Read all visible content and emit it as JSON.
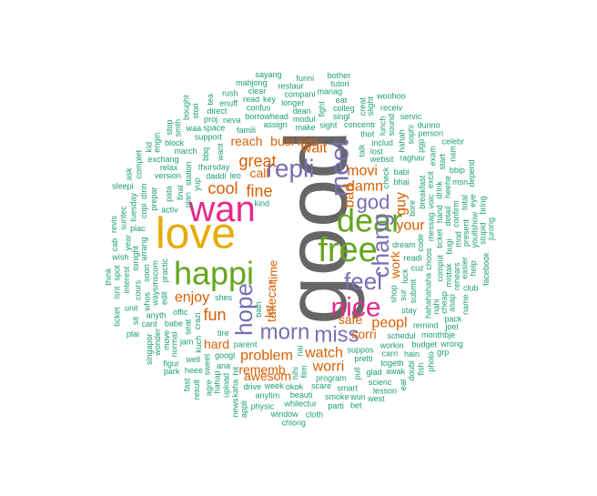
{
  "title": "",
  "colors": {
    "xs": "#1b9e77",
    "s": "#d95f02",
    "m": "#7570b3",
    "l": "#e7298a",
    "xl": "#66a61e",
    "xxl": "#e6ab02",
    "top": "#666666"
  },
  "words": [
    {
      "text": "good",
      "size": "top"
    },
    {
      "text": "love",
      "size": "xxl"
    },
    {
      "text": "dear",
      "size": "xl"
    },
    {
      "text": "free",
      "size": "xl"
    },
    {
      "text": "happi",
      "size": "xl"
    },
    {
      "text": "wan",
      "size": "l"
    },
    {
      "text": "nice",
      "size": "l"
    },
    {
      "text": "repli",
      "size": "m"
    },
    {
      "text": "feel",
      "size": "m"
    },
    {
      "text": "meet",
      "size": "m"
    },
    {
      "text": "chang",
      "size": "m"
    },
    {
      "text": "hope",
      "size": "m"
    },
    {
      "text": "morn",
      "size": "m"
    },
    {
      "text": "miss",
      "size": "m"
    },
    {
      "text": "god",
      "size": "m"
    },
    {
      "text": "great",
      "size": "s"
    },
    {
      "text": "cool",
      "size": "s"
    },
    {
      "text": "fine",
      "size": "s"
    },
    {
      "text": "fun",
      "size": "s"
    },
    {
      "text": "enjoy",
      "size": "s"
    },
    {
      "text": "problem",
      "size": "s"
    },
    {
      "text": "watch",
      "size": "s"
    },
    {
      "text": "worri",
      "size": "s"
    },
    {
      "text": "peopl",
      "size": "s"
    },
    {
      "text": "movi",
      "size": "s"
    },
    {
      "text": "damn",
      "size": "s"
    },
    {
      "text": "bad",
      "size": "s"
    },
    {
      "text": "guy",
      "size": "s"
    },
    {
      "text": "your",
      "size": "s"
    },
    {
      "text": "wait",
      "size": "s"
    },
    {
      "text": "busi",
      "size": "s"
    },
    {
      "text": "kiss",
      "size": "s"
    },
    {
      "text": "reach",
      "size": "s"
    },
    {
      "text": "call",
      "size": "s"
    },
    {
      "text": "hard",
      "size": "s"
    },
    {
      "text": "awesom",
      "size": "s"
    },
    {
      "text": "rememb",
      "size": "s"
    },
    {
      "text": "work",
      "size": "s"
    },
    {
      "text": "sorri",
      "size": "s"
    },
    {
      "text": "safe",
      "size": "s"
    },
    {
      "text": "takecar",
      "size": "s"
    },
    {
      "text": "let",
      "size": "s"
    },
    {
      "text": "time",
      "size": "s"
    },
    {
      "text": "shes",
      "size": "xs"
    },
    {
      "text": "bath",
      "size": "xs"
    },
    {
      "text": "luck",
      "size": "xs"
    },
    {
      "text": "shop",
      "size": "xs"
    },
    {
      "text": "dream",
      "size": "xs"
    },
    {
      "text": "check",
      "size": "xs"
    },
    {
      "text": "daddi",
      "size": "xs"
    },
    {
      "text": "thursday",
      "size": "xs"
    },
    {
      "text": "parent",
      "size": "xs"
    },
    {
      "text": "suppos",
      "size": "xs"
    },
    {
      "text": "bore",
      "size": "xs"
    },
    {
      "text": "readi",
      "size": "xs"
    },
    {
      "text": "submit",
      "size": "xs"
    },
    {
      "text": "tire",
      "size": "xs"
    },
    {
      "text": "talk",
      "size": "xs"
    },
    {
      "text": "bhai",
      "size": "xs"
    },
    {
      "text": "crazi",
      "size": "xs"
    },
    {
      "text": "plan",
      "size": "xs"
    },
    {
      "text": "lost",
      "size": "xs"
    },
    {
      "text": "choos",
      "size": "xs"
    },
    {
      "text": "want",
      "size": "xs"
    },
    {
      "text": "nai",
      "size": "xs"
    },
    {
      "text": "final",
      "size": "xs"
    },
    {
      "text": "stay",
      "size": "xs"
    },
    {
      "text": "make",
      "size": "xs"
    },
    {
      "text": "famili",
      "size": "xs"
    },
    {
      "text": "messag",
      "size": "xs"
    },
    {
      "text": "kind",
      "size": "xs"
    },
    {
      "text": "sur",
      "size": "xs"
    },
    {
      "text": "babi",
      "size": "xs"
    },
    {
      "text": "offic",
      "size": "xs"
    },
    {
      "text": "practic",
      "size": "xs"
    },
    {
      "text": "breakfast",
      "size": "xs"
    },
    {
      "text": "modul",
      "size": "xs"
    },
    {
      "text": "station",
      "size": "xs"
    },
    {
      "text": "activ",
      "size": "xs"
    },
    {
      "text": "code",
      "size": "xs"
    },
    {
      "text": "assign",
      "size": "xs"
    },
    {
      "text": "pretti",
      "size": "xs"
    },
    {
      "text": "sight",
      "size": "xs"
    },
    {
      "text": "googl",
      "size": "xs"
    },
    {
      "text": "hahahahaha",
      "size": "xs"
    },
    {
      "text": "ticket",
      "size": "xs"
    },
    {
      "text": "websit",
      "size": "xs"
    },
    {
      "text": "voic",
      "size": "xs"
    },
    {
      "text": "pata",
      "size": "xs"
    },
    {
      "text": "program",
      "size": "xs"
    },
    {
      "text": "film",
      "size": "xs"
    },
    {
      "text": "workin",
      "size": "xs"
    },
    {
      "text": "schedul",
      "size": "xs"
    },
    {
      "text": "waysmscom",
      "size": "xs"
    },
    {
      "text": "concentr",
      "size": "xs"
    },
    {
      "text": "bbq",
      "size": "xs"
    },
    {
      "text": "includ",
      "size": "xs"
    },
    {
      "text": "carri",
      "size": "xs"
    },
    {
      "text": "hihi",
      "size": "xs"
    },
    {
      "text": "comput",
      "size": "xs"
    },
    {
      "text": "seat",
      "size": "xs"
    },
    {
      "text": "borrowhead",
      "size": "xs"
    },
    {
      "text": "support",
      "size": "xs"
    },
    {
      "text": "raghav",
      "size": "xs"
    },
    {
      "text": "kuch",
      "size": "xs"
    },
    {
      "text": "hand",
      "size": "xs"
    },
    {
      "text": "pull",
      "size": "xs"
    },
    {
      "text": "version",
      "size": "xs"
    },
    {
      "text": "edit",
      "size": "xs"
    },
    {
      "text": "dean",
      "size": "xs"
    },
    {
      "text": "bugi",
      "size": "xs"
    },
    {
      "text": "okok",
      "size": "xs"
    },
    {
      "text": "yup",
      "size": "xs"
    },
    {
      "text": "babe",
      "size": "xs"
    },
    {
      "text": "hit",
      "size": "xs"
    },
    {
      "text": "cuz",
      "size": "xs"
    },
    {
      "text": "mistak",
      "size": "xs"
    },
    {
      "text": "prepar",
      "size": "xs"
    },
    {
      "text": "detail",
      "size": "xs"
    },
    {
      "text": "excit",
      "size": "xs"
    },
    {
      "text": "arrang",
      "size": "xs"
    },
    {
      "text": "fight",
      "size": "xs"
    },
    {
      "text": "singl",
      "size": "xs"
    },
    {
      "text": "remind",
      "size": "xs"
    },
    {
      "text": "nahi",
      "size": "xs"
    },
    {
      "text": "ana",
      "size": "xs"
    },
    {
      "text": "thot",
      "size": "xs"
    },
    {
      "text": "togeth",
      "size": "xs"
    },
    {
      "text": "relax",
      "size": "xs"
    },
    {
      "text": "space",
      "size": "xs"
    },
    {
      "text": "confus",
      "size": "xs"
    },
    {
      "text": "week",
      "size": "xs"
    },
    {
      "text": "scare",
      "size": "xs"
    },
    {
      "text": "hahah",
      "size": "xs"
    },
    {
      "text": "march",
      "size": "xs"
    },
    {
      "text": "neva",
      "size": "xs"
    },
    {
      "text": "longer",
      "size": "xs"
    },
    {
      "text": "colleg",
      "size": "xs"
    },
    {
      "text": "drive",
      "size": "xs"
    },
    {
      "text": "drink",
      "size": "xs"
    },
    {
      "text": "glad",
      "size": "xs"
    },
    {
      "text": "jam",
      "size": "xs"
    },
    {
      "text": "beauti",
      "size": "xs"
    },
    {
      "text": "mod",
      "size": "xs"
    },
    {
      "text": "copi",
      "size": "xs"
    },
    {
      "text": "anyth",
      "size": "xs"
    },
    {
      "text": "sweet",
      "size": "xs"
    },
    {
      "text": "lunch",
      "size": "xs"
    },
    {
      "text": "soon",
      "size": "xs"
    },
    {
      "text": "heehe",
      "size": "xs"
    },
    {
      "text": "well",
      "size": "xs"
    },
    {
      "text": "smart",
      "size": "xs"
    },
    {
      "text": "normal",
      "size": "xs"
    },
    {
      "text": "exchang",
      "size": "xs"
    },
    {
      "text": "confirm",
      "size": "xs"
    },
    {
      "text": "budget",
      "size": "xs"
    },
    {
      "text": "rehears",
      "size": "xs"
    },
    {
      "text": "whos",
      "size": "xs"
    },
    {
      "text": "tonight",
      "size": "xs"
    },
    {
      "text": "plac",
      "size": "xs"
    },
    {
      "text": "compani",
      "size": "xs"
    },
    {
      "text": "sophi",
      "size": "xs"
    },
    {
      "text": "asap",
      "size": "xs"
    },
    {
      "text": "present",
      "size": "xs"
    },
    {
      "text": "anytim",
      "size": "xs"
    },
    {
      "text": "read",
      "size": "xs"
    },
    {
      "text": "upload",
      "size": "xs"
    },
    {
      "text": "hain",
      "size": "xs"
    },
    {
      "text": "hahap",
      "size": "xs"
    },
    {
      "text": "monthbje",
      "size": "xs"
    },
    {
      "text": "creat",
      "size": "xs"
    },
    {
      "text": "scienc",
      "size": "xs"
    },
    {
      "text": "easier",
      "size": "xs"
    },
    {
      "text": "kaha",
      "size": "xs"
    },
    {
      "text": "proj",
      "size": "xs"
    },
    {
      "text": "pgp",
      "size": "xs"
    },
    {
      "text": "cheap",
      "size": "xs"
    },
    {
      "text": "awak",
      "size": "xs"
    },
    {
      "text": "whilectur",
      "size": "xs"
    },
    {
      "text": "dinn",
      "size": "xs"
    },
    {
      "text": "sound",
      "size": "xs"
    },
    {
      "text": "waa",
      "size": "xs"
    },
    {
      "text": "tuesday",
      "size": "xs"
    },
    {
      "text": "smoke",
      "size": "xs"
    },
    {
      "text": "slight",
      "size": "xs"
    },
    {
      "text": "direct",
      "size": "xs"
    },
    {
      "text": "block",
      "size": "xs"
    },
    {
      "text": "clear",
      "size": "xs"
    },
    {
      "text": "move",
      "size": "xs"
    },
    {
      "text": "cours",
      "size": "xs"
    },
    {
      "text": "eat",
      "size": "xs"
    },
    {
      "text": "exam",
      "size": "xs"
    },
    {
      "text": "interest",
      "size": "xs"
    },
    {
      "text": "manag",
      "size": "xs"
    },
    {
      "text": "total",
      "size": "xs"
    },
    {
      "text": "wonder",
      "size": "xs"
    },
    {
      "text": "start",
      "size": "xs"
    },
    {
      "text": "receiv",
      "size": "xs"
    },
    {
      "text": "parti",
      "size": "xs"
    },
    {
      "text": "cant",
      "size": "xs"
    },
    {
      "text": "pack",
      "size": "xs"
    },
    {
      "text": "year",
      "size": "xs"
    },
    {
      "text": "wish",
      "size": "xs"
    },
    {
      "text": "msn",
      "size": "xs"
    },
    {
      "text": "heee",
      "size": "xs"
    },
    {
      "text": "youllshow",
      "size": "xs"
    },
    {
      "text": "lesson",
      "size": "xs"
    },
    {
      "text": "club",
      "size": "xs"
    },
    {
      "text": "help",
      "size": "xs"
    },
    {
      "text": "name",
      "size": "xs"
    },
    {
      "text": "figur",
      "size": "xs"
    },
    {
      "text": "agre",
      "size": "xs"
    },
    {
      "text": "unit",
      "size": "xs"
    },
    {
      "text": "enuff",
      "size": "xs"
    },
    {
      "text": "restaur",
      "size": "xs"
    },
    {
      "text": "suntec",
      "size": "xs"
    },
    {
      "text": "physic",
      "size": "xs"
    },
    {
      "text": "wun",
      "size": "xs"
    },
    {
      "text": "photo",
      "size": "xs"
    },
    {
      "text": "window",
      "size": "xs"
    },
    {
      "text": "person",
      "size": "xs"
    },
    {
      "text": "smth",
      "size": "xs"
    },
    {
      "text": "engin",
      "size": "xs"
    },
    {
      "text": "doubl",
      "size": "xs"
    },
    {
      "text": "bbip",
      "size": "xs"
    },
    {
      "text": "tutori",
      "size": "xs"
    },
    {
      "text": "complet",
      "size": "xs"
    },
    {
      "text": "stupid",
      "size": "xs"
    },
    {
      "text": "result",
      "size": "xs"
    },
    {
      "text": "cab",
      "size": "xs"
    },
    {
      "text": "spot",
      "size": "xs"
    },
    {
      "text": "stori",
      "size": "xs"
    },
    {
      "text": "servic",
      "size": "xs"
    },
    {
      "text": "cloth",
      "size": "xs"
    },
    {
      "text": "fish",
      "size": "xs"
    },
    {
      "text": "mahjong",
      "size": "xs"
    },
    {
      "text": "joel",
      "size": "xs"
    },
    {
      "text": "sleepi",
      "size": "xs"
    },
    {
      "text": "woohoo",
      "size": "xs"
    },
    {
      "text": "singapor",
      "size": "xs"
    },
    {
      "text": "facebook",
      "size": "xs"
    },
    {
      "text": "bet",
      "size": "xs"
    },
    {
      "text": "stop",
      "size": "xs"
    },
    {
      "text": "revis",
      "size": "xs"
    },
    {
      "text": "leo",
      "size": "xs"
    },
    {
      "text": "eye",
      "size": "xs"
    },
    {
      "text": "nam",
      "size": "xs"
    },
    {
      "text": "grp",
      "size": "xs"
    },
    {
      "text": "bring",
      "size": "xs"
    },
    {
      "text": "tea",
      "size": "xs"
    },
    {
      "text": "appli",
      "size": "xs"
    },
    {
      "text": "sit",
      "size": "xs"
    },
    {
      "text": "wrong",
      "size": "xs"
    },
    {
      "text": "funni",
      "size": "xs"
    },
    {
      "text": "west",
      "size": "xs"
    },
    {
      "text": "isnt",
      "size": "xs"
    },
    {
      "text": "park",
      "size": "xs"
    },
    {
      "text": "dunno",
      "size": "xs"
    },
    {
      "text": "news",
      "size": "xs"
    },
    {
      "text": "bought",
      "size": "xs"
    },
    {
      "text": "sayang",
      "size": "xs"
    },
    {
      "text": "depend",
      "size": "xs"
    },
    {
      "text": "fast",
      "size": "xs"
    },
    {
      "text": "eat",
      "size": "xs"
    },
    {
      "text": "rush",
      "size": "xs"
    },
    {
      "text": "kid",
      "size": "xs"
    },
    {
      "text": "key",
      "size": "xs"
    },
    {
      "text": "think",
      "size": "xs"
    },
    {
      "text": "ask",
      "size": "xs"
    },
    {
      "text": "plai",
      "size": "xs"
    },
    {
      "text": "celebr",
      "size": "xs"
    },
    {
      "text": "jurong",
      "size": "xs"
    },
    {
      "text": "bother",
      "size": "xs"
    },
    {
      "text": "chiong",
      "size": "xs"
    },
    {
      "text": "ticket",
      "size": "xs"
    }
  ]
}
